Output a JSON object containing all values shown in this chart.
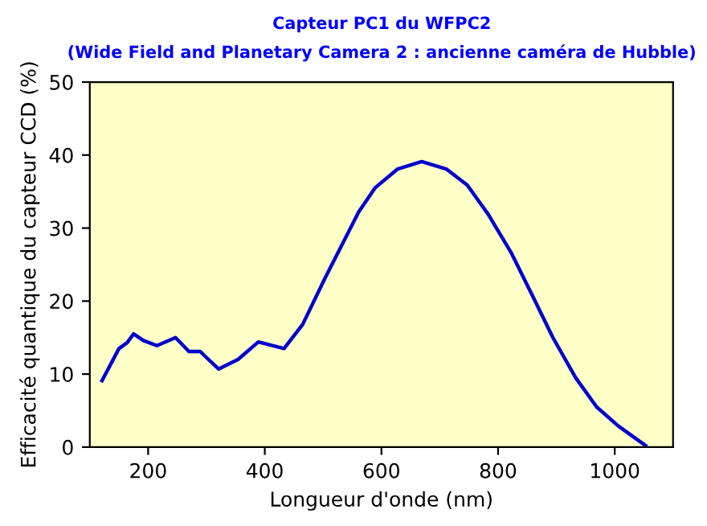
{
  "chart_data": {
    "type": "line",
    "title": "Capteur PC1 du WFPC2",
    "subtitle": "(Wide Field and Planetary Camera 2 : ancienne caméra de Hubble)",
    "xlabel": "Longueur d'onde (nm)",
    "ylabel": "Efficacité quantique du capteur CCD (%)",
    "series": [
      {
        "color": "#0000cc",
        "x": [
          121,
          150,
          164,
          175,
          192,
          215,
          247,
          270,
          289,
          321,
          354,
          389,
          433,
          465,
          503,
          533,
          561,
          589,
          628,
          669,
          711,
          747,
          783,
          822,
          858,
          894,
          933,
          969,
          1006,
          1053
        ],
        "values": [
          9.1,
          13.5,
          14.3,
          15.5,
          14.6,
          13.9,
          15.0,
          13.1,
          13.1,
          10.7,
          12.0,
          14.4,
          13.5,
          16.8,
          23.1,
          27.8,
          32.2,
          35.5,
          38.1,
          39.1,
          38.1,
          35.9,
          31.9,
          26.7,
          20.9,
          15.0,
          9.5,
          5.5,
          2.9,
          0.2
        ]
      }
    ],
    "xlim": [
      100,
      1100
    ],
    "ylim": [
      0,
      50
    ],
    "xticks": [
      200,
      400,
      600,
      800,
      1000
    ],
    "yticks": [
      0,
      10,
      20,
      30,
      40,
      50
    ],
    "grid": false,
    "legend": false,
    "marker": "none",
    "line_style": "solid"
  }
}
